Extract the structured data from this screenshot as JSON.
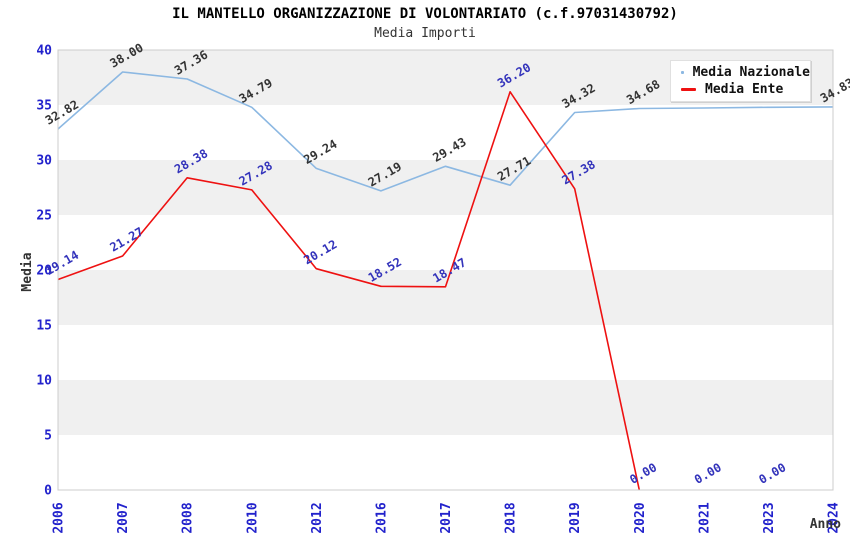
{
  "page": {
    "title": "IL MANTELLO ORGANIZZAZIONE DI VOLONTARIATO (c.f.97031430792)",
    "subtitle": "Media Importi"
  },
  "colors": {
    "axis_tick_text": "#2222cc",
    "band_fill": "#f0f0f0",
    "plot_border": "#cccccc",
    "axis_title_text": "#333333",
    "title_text": "#000000",
    "legend_border": "#e0e0e0",
    "background": "#ffffff"
  },
  "chart_data": {
    "type": "line",
    "title": "IL MANTELLO ORGANIZZAZIONE DI VOLONTARIATO (c.f.97031430792)",
    "subtitle": "Media Importi",
    "xlabel": "Anno",
    "ylabel": "Media",
    "ylim": [
      0,
      40
    ],
    "ytick_step": 5,
    "yticks": [
      "0",
      "5",
      "10",
      "15",
      "20",
      "25",
      "30",
      "35",
      "40"
    ],
    "grid": "alternating-horizontal-bands",
    "legend_position": "top-right-inside",
    "categories": [
      "2006",
      "2007",
      "2008",
      "2010",
      "2012",
      "2016",
      "2017",
      "2018",
      "2019",
      "2020",
      "2021",
      "2023",
      "2024"
    ],
    "series": [
      {
        "name": "Media Nazionale",
        "color": "#8cb8e2",
        "label_color": "#333333",
        "values": [
          32.82,
          38.0,
          37.36,
          34.79,
          29.24,
          27.19,
          29.43,
          27.71,
          34.32,
          34.68,
          34.73,
          34.79,
          34.83
        ],
        "labels": [
          "32.82",
          "38.00",
          "37.36",
          "34.79",
          "29.24",
          "27.19",
          "29.43",
          "27.71",
          "34.32",
          "34.68",
          "",
          "",
          "34.83"
        ],
        "note_hidden_labels": "labels at 2021 and 2023 are covered by the legend box"
      },
      {
        "name": "Media Ente",
        "color": "#ee1111",
        "label_color": "#3333bb",
        "values": [
          19.14,
          21.27,
          28.38,
          27.28,
          20.12,
          18.52,
          18.47,
          36.2,
          27.38,
          0.0,
          0.0,
          0.0,
          null
        ],
        "labels": [
          "19.14",
          "21.27",
          "28.38",
          "27.28",
          "20.12",
          "18.52",
          "18.47",
          "36.20",
          "27.38",
          "0.00",
          "0.00",
          "0.00",
          ""
        ],
        "draw_until_index": 9
      }
    ]
  }
}
